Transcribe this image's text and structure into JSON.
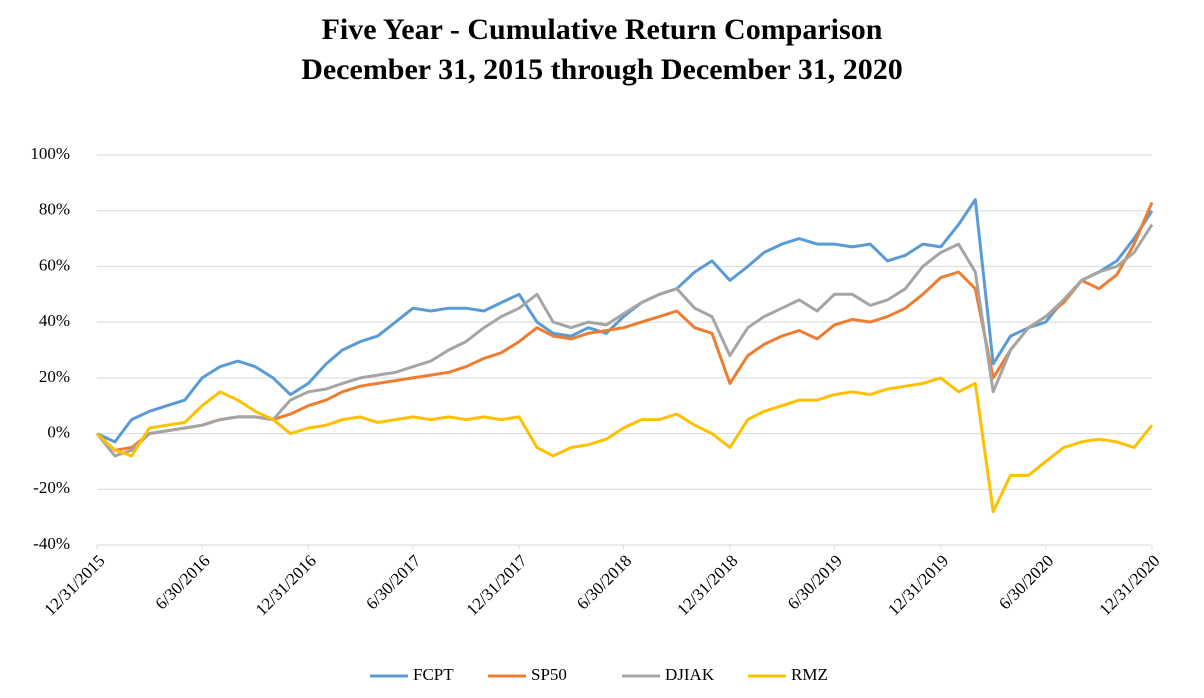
{
  "chart_data": {
    "type": "line",
    "title": "Five Year - Cumulative Return Comparison",
    "subtitle": "December 31, 2015 through December 31, 2020",
    "x": [
      "2015-12-31",
      "2016-01-31",
      "2016-02-29",
      "2016-03-31",
      "2016-04-30",
      "2016-05-31",
      "2016-06-30",
      "2016-07-31",
      "2016-08-31",
      "2016-09-30",
      "2016-10-31",
      "2016-11-30",
      "2016-12-31",
      "2017-01-31",
      "2017-02-28",
      "2017-03-31",
      "2017-04-30",
      "2017-05-31",
      "2017-06-30",
      "2017-07-31",
      "2017-08-31",
      "2017-09-30",
      "2017-10-31",
      "2017-11-30",
      "2017-12-31",
      "2018-01-31",
      "2018-02-28",
      "2018-03-31",
      "2018-04-30",
      "2018-05-31",
      "2018-06-30",
      "2018-07-31",
      "2018-08-31",
      "2018-09-30",
      "2018-10-31",
      "2018-11-30",
      "2018-12-31",
      "2019-01-31",
      "2019-02-28",
      "2019-03-31",
      "2019-04-30",
      "2019-05-31",
      "2019-06-30",
      "2019-07-31",
      "2019-08-31",
      "2019-09-30",
      "2019-10-31",
      "2019-11-30",
      "2019-12-31",
      "2020-01-31",
      "2020-02-29",
      "2020-03-31",
      "2020-04-30",
      "2020-05-31",
      "2020-06-30",
      "2020-07-31",
      "2020-08-31",
      "2020-09-30",
      "2020-10-31",
      "2020-11-30",
      "2020-12-31"
    ],
    "series": [
      {
        "name": "FCPT",
        "color": "#5b9bd5",
        "values": [
          0,
          -3,
          5,
          8,
          10,
          12,
          20,
          24,
          26,
          24,
          20,
          14,
          18,
          25,
          30,
          33,
          35,
          40,
          45,
          44,
          45,
          45,
          44,
          47,
          50,
          40,
          36,
          35,
          38,
          36,
          42,
          47,
          50,
          52,
          58,
          62,
          55,
          60,
          65,
          68,
          70,
          68,
          68,
          67,
          68,
          62,
          64,
          68,
          67,
          75,
          84,
          25,
          35,
          38,
          40,
          48,
          55,
          58,
          62,
          70,
          80
        ]
      },
      {
        "name": "SP50",
        "color": "#ed7d31",
        "values": [
          0,
          -6,
          -5,
          0,
          1,
          2,
          3,
          5,
          6,
          6,
          5,
          7,
          10,
          12,
          15,
          17,
          18,
          19,
          20,
          21,
          22,
          24,
          27,
          29,
          33,
          38,
          35,
          34,
          36,
          37,
          38,
          40,
          42,
          44,
          38,
          36,
          18,
          28,
          32,
          35,
          37,
          34,
          39,
          41,
          40,
          42,
          45,
          50,
          56,
          58,
          52,
          20,
          30,
          38,
          42,
          47,
          55,
          52,
          57,
          68,
          83
        ]
      },
      {
        "name": "DJIAK",
        "color": "#a5a5a5",
        "values": [
          0,
          -8,
          -6,
          0,
          1,
          2,
          3,
          5,
          6,
          6,
          5,
          12,
          15,
          16,
          18,
          20,
          21,
          22,
          24,
          26,
          30,
          33,
          38,
          42,
          45,
          50,
          40,
          38,
          40,
          39,
          43,
          47,
          50,
          52,
          45,
          42,
          28,
          38,
          42,
          45,
          48,
          44,
          50,
          50,
          46,
          48,
          52,
          60,
          65,
          68,
          58,
          15,
          30,
          38,
          42,
          48,
          55,
          58,
          60,
          65,
          75
        ]
      },
      {
        "name": "RMZ",
        "color": "#ffc000",
        "values": [
          0,
          -6,
          -8,
          2,
          3,
          4,
          10,
          15,
          12,
          8,
          5,
          0,
          2,
          3,
          5,
          6,
          4,
          5,
          6,
          5,
          6,
          5,
          6,
          5,
          6,
          -5,
          -8,
          -5,
          -4,
          -2,
          2,
          5,
          5,
          7,
          3,
          0,
          -5,
          5,
          8,
          10,
          12,
          12,
          14,
          15,
          14,
          16,
          17,
          18,
          20,
          15,
          18,
          -28,
          -15,
          -15,
          -10,
          -5,
          -3,
          -2,
          -3,
          -5,
          3
        ]
      }
    ],
    "xlim": [
      "2015-12-31",
      "2020-12-31"
    ],
    "xticks": [
      {
        "value": "2015-12-31",
        "label": "12/31/2015"
      },
      {
        "value": "2016-06-30",
        "label": "6/30/2016"
      },
      {
        "value": "2016-12-31",
        "label": "12/31/2016"
      },
      {
        "value": "2017-06-30",
        "label": "6/30/2017"
      },
      {
        "value": "2017-12-31",
        "label": "12/31/2017"
      },
      {
        "value": "2018-06-30",
        "label": "6/30/2018"
      },
      {
        "value": "2018-12-31",
        "label": "12/31/2018"
      },
      {
        "value": "2019-06-30",
        "label": "6/30/2019"
      },
      {
        "value": "2019-12-31",
        "label": "12/31/2019"
      },
      {
        "value": "2020-06-30",
        "label": "6/30/2020"
      },
      {
        "value": "2020-12-31",
        "label": "12/31/2020"
      }
    ],
    "ylim": [
      -40,
      100
    ],
    "yticks": [
      {
        "value": -40,
        "label": "-40%"
      },
      {
        "value": -20,
        "label": "-20%"
      },
      {
        "value": 0,
        "label": "0%"
      },
      {
        "value": 20,
        "label": "20%"
      },
      {
        "value": 40,
        "label": "40%"
      },
      {
        "value": 60,
        "label": "60%"
      },
      {
        "value": 80,
        "label": "80%"
      },
      {
        "value": 100,
        "label": "100%"
      }
    ],
    "grid": true,
    "legend": "bottom"
  }
}
